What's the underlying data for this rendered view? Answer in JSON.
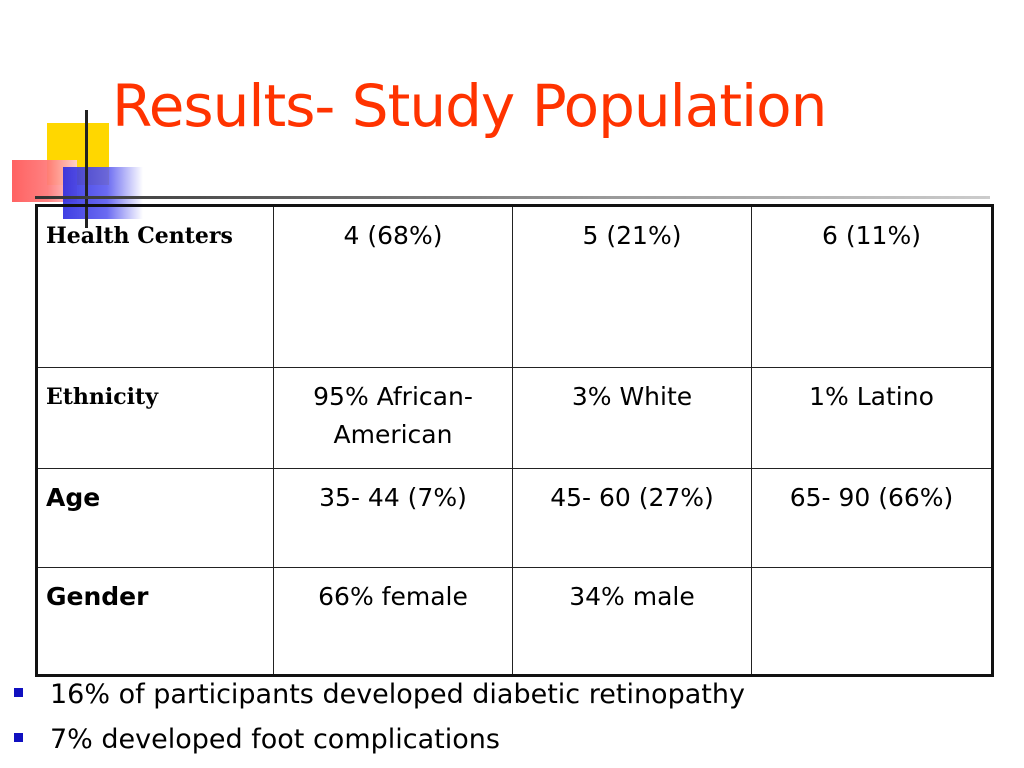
{
  "slide": {
    "title": "Results- Study Population"
  },
  "table": {
    "rows": [
      {
        "label": "Health Centers",
        "cells": [
          "4 (68%)",
          "5 (21%)",
          "6 (11%)"
        ]
      },
      {
        "label": "Ethnicity",
        "cells": [
          "95% African-American",
          "3% White",
          "1% Latino"
        ]
      },
      {
        "label": "Age",
        "cells": [
          "35- 44 (7%)",
          "45- 60 (27%)",
          "65- 90 (66%)"
        ]
      },
      {
        "label": "Gender",
        "cells": [
          "66% female",
          "34% male",
          ""
        ]
      }
    ]
  },
  "bullets": [
    "16% of participants developed diabetic retinopathy",
    "7% developed foot complications"
  ],
  "colors": {
    "title": "#ff3300",
    "bullet": "#1010c0",
    "logo_yellow": "#ffd700",
    "logo_red": "#ff5a5a",
    "logo_blue": "#2a2ae0"
  }
}
